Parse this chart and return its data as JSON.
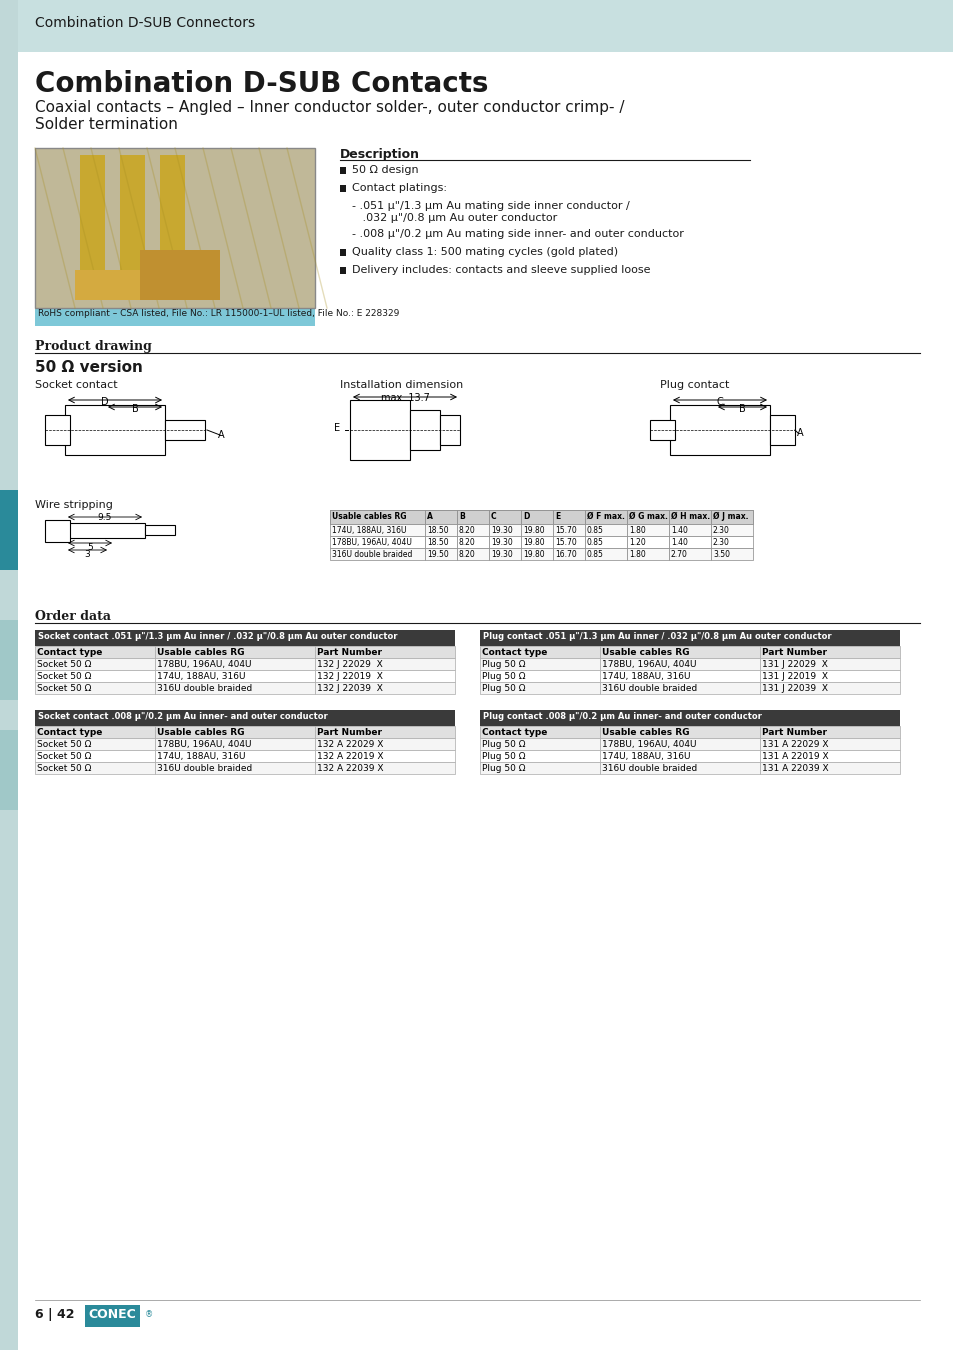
{
  "header_bg": "#c8e0e0",
  "header_text": "Combination D-SUB Connectors",
  "header_text_color": "#1a1a1a",
  "page_bg": "#ffffff",
  "title": "Combination D-SUB Contacts",
  "subtitle": "Coaxial contacts – Angled – Inner conductor solder-, outer conductor crimp- /\nSolder termination",
  "rohs_text": "RoHS compliant – CSA listed, File No.: LR 115000-1–UL listed, File No.: E 228329",
  "rohs_bg": "#7ec8d8",
  "desc_title": "Description",
  "desc_items": [
    "50 Ω design",
    "Contact platings:",
    "- .051 μ\"/1.3 μm Au mating side inner conductor /\n   .032 μ\"/0.8 μm Au outer conductor",
    "- .008 μ\"/0.2 μm Au mating side inner- and outer conductor",
    "Quality class 1: 500 mating cycles (gold plated)",
    "Delivery includes: contacts and sleeve supplied loose"
  ],
  "product_drawing_title": "Product drawing",
  "version_title": "50 Ω version",
  "socket_label": "Socket contact",
  "install_label": "Installation dimension",
  "plug_label": "Plug contact",
  "wire_label": "Wire stripping",
  "table_headers": [
    "Usable cables RG",
    "A",
    "B",
    "C",
    "D",
    "E",
    "Ø F max.",
    "Ø G max.",
    "Ø H max.",
    "Ø J max."
  ],
  "table_rows": [
    [
      "174U, 188AU, 316U",
      "18.50",
      "8.20",
      "19.30",
      "19.80",
      "15.70",
      "0.85",
      "1.80",
      "1.40",
      "2.30"
    ],
    [
      "178BU, 196AU, 404U",
      "18.50",
      "8.20",
      "19.30",
      "19.80",
      "15.70",
      "0.85",
      "1.20",
      "1.40",
      "2.30"
    ],
    [
      "316U double braided",
      "19.50",
      "8.20",
      "19.30",
      "19.80",
      "16.70",
      "0.85",
      "1.80",
      "2.70",
      "3.50"
    ]
  ],
  "order_title": "Order data",
  "socket_order_title": "Socket contact .051 μ\"/1.3 μm Au inner / .032 μ\"/0.8 μm Au outer conductor",
  "plug_order_title": "Plug contact .051 μ\"/1.3 μm Au inner / .032 μ\"/0.8 μm Au outer conductor",
  "socket_order_cols": [
    "Contact type",
    "Usable cables RG",
    "Part Number"
  ],
  "socket_order_rows": [
    [
      "Socket 50 Ω",
      "178BU, 196AU, 404U",
      "132 J 22029  X"
    ],
    [
      "Socket 50 Ω",
      "174U, 188AU, 316U",
      "132 J 22019  X"
    ],
    [
      "Socket 50 Ω",
      "316U double braided",
      "132 J 22039  X"
    ]
  ],
  "plug_order_rows": [
    [
      "Plug 50 Ω",
      "178BU, 196AU, 404U",
      "131 J 22029  X"
    ],
    [
      "Plug 50 Ω",
      "174U, 188AU, 316U",
      "131 J 22019  X"
    ],
    [
      "Plug 50 Ω",
      "316U double braided",
      "131 J 22039  X"
    ]
  ],
  "socket_order2_title": "Socket contact .008 μ\"/0.2 μm Au inner- and outer conductor",
  "plug_order2_title": "Plug contact .008 μ\"/0.2 μm Au inner- and outer conductor",
  "socket_order2_rows": [
    [
      "Socket 50 Ω",
      "178BU, 196AU, 404U",
      "132 A 22029 X"
    ],
    [
      "Socket 50 Ω",
      "174U, 188AU, 316U",
      "132 A 22019 X"
    ],
    [
      "Socket 50 Ω",
      "316U double braided",
      "132 A 22039 X"
    ]
  ],
  "plug_order2_rows": [
    [
      "Plug 50 Ω",
      "178BU, 196AU, 404U",
      "131 A 22029 X"
    ],
    [
      "Plug 50 Ω",
      "174U, 188AU, 316U",
      "131 A 22019 X"
    ],
    [
      "Plug 50 Ω",
      "316U double braided",
      "131 A 22039 X"
    ]
  ],
  "footer_page": "6 | 42",
  "accent_color": "#2a8a9a",
  "light_blue": "#c8e0e0",
  "table_header_bg": "#d0d0d0",
  "order_header_bg": "#4a4a4a",
  "order_header_text": "#ffffff",
  "left_sidebar_color": "#c0d8d8",
  "accent_sidebar": "#2a8a9a"
}
